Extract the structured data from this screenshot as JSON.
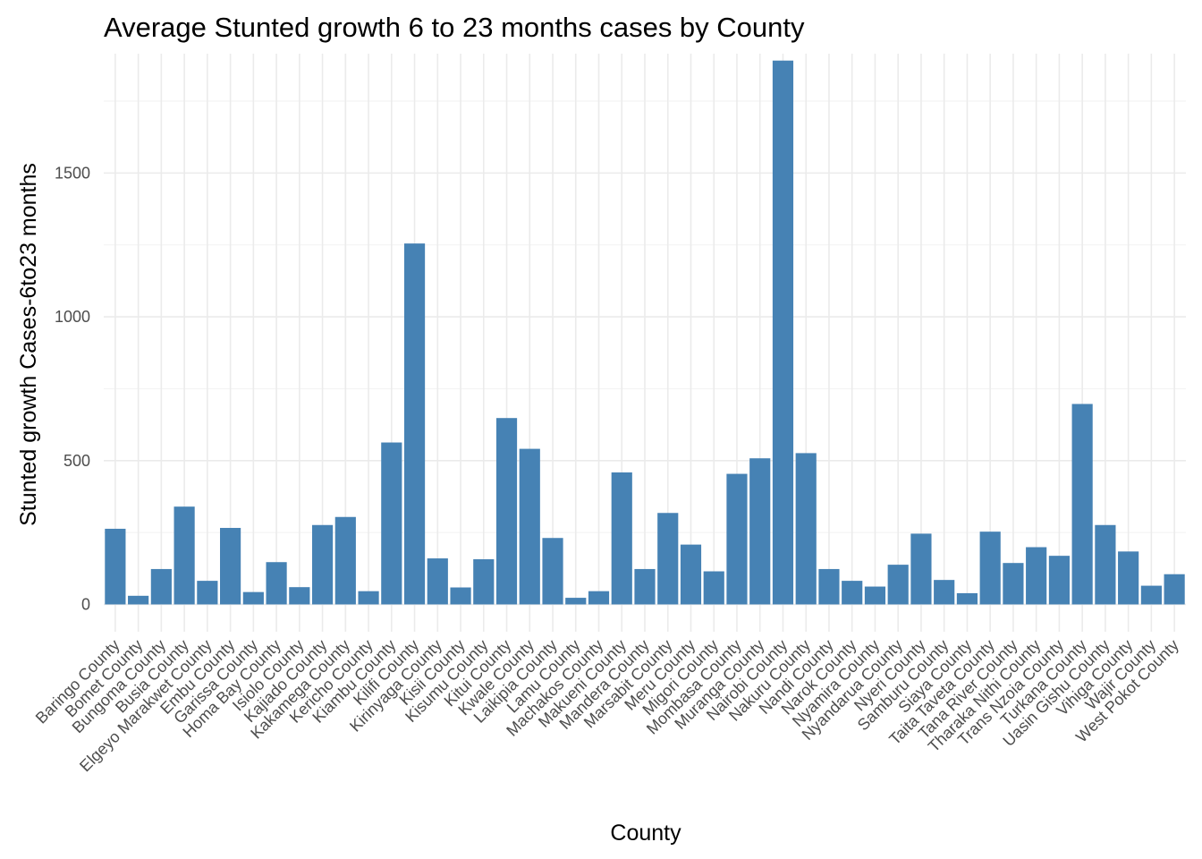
{
  "chart_data": {
    "type": "bar",
    "title": "Average Stunted growth 6 to 23 months cases by County",
    "xlabel": "County",
    "ylabel": "Stunted growth Cases-6to23 months",
    "ylim": [
      -95,
      1915
    ],
    "yticks": [
      0,
      500,
      1000,
      1500
    ],
    "ytick_labels": [
      "0",
      "500",
      "1000",
      "1500"
    ],
    "grid": true,
    "legend": "none",
    "bar_color": "#4682b4",
    "categories": [
      "Baringo County",
      "Bomet County",
      "Bungoma County",
      "Busia County",
      "Elgeyo Marakwet County",
      "Embu County",
      "Garissa County",
      "Homa Bay County",
      "Isiolo County",
      "Kajiado County",
      "Kakamega County",
      "Kericho County",
      "Kiambu County",
      "Kilifi County",
      "Kirinyaga County",
      "Kisii County",
      "Kisumu County",
      "Kitui County",
      "Kwale County",
      "Laikipia County",
      "Lamu County",
      "Machakos County",
      "Makueni County",
      "Mandera County",
      "Marsabit County",
      "Meru County",
      "Migori County",
      "Mombasa County",
      "Muranga County",
      "Nairobi County",
      "Nakuru County",
      "Nandi County",
      "Narok County",
      "Nyamira County",
      "Nyandarua County",
      "Nyeri County",
      "Samburu County",
      "Siaya County",
      "Taita Taveta County",
      "Tana River County",
      "Tharaka Nithi County",
      "Trans Nzoia County",
      "Turkana County",
      "Uasin Gishu County",
      "Vihiga County",
      "Wajir County",
      "West Pokot County"
    ],
    "values": [
      263,
      30,
      123,
      340,
      82,
      266,
      43,
      147,
      60,
      276,
      304,
      46,
      563,
      1255,
      160,
      59,
      157,
      648,
      541,
      231,
      23,
      46,
      459,
      123,
      318,
      208,
      115,
      454,
      508,
      1891,
      526,
      123,
      82,
      62,
      138,
      246,
      85,
      39,
      253,
      144,
      199,
      169,
      697,
      276,
      184,
      65,
      105
    ]
  }
}
